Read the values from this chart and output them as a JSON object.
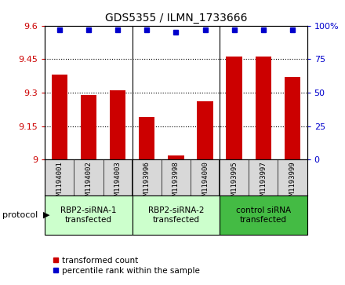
{
  "title": "GDS5355 / ILMN_1733666",
  "samples": [
    "GSM1194001",
    "GSM1194002",
    "GSM1194003",
    "GSM1193996",
    "GSM1193998",
    "GSM1194000",
    "GSM1193995",
    "GSM1193997",
    "GSM1193999"
  ],
  "bar_values": [
    9.38,
    9.29,
    9.31,
    9.19,
    9.02,
    9.26,
    9.46,
    9.46,
    9.37
  ],
  "blue_values": [
    97,
    97,
    97,
    97,
    95,
    97,
    97,
    97,
    97
  ],
  "ylim_left": [
    9.0,
    9.6
  ],
  "ylim_right": [
    0,
    100
  ],
  "yticks_left": [
    9.0,
    9.15,
    9.3,
    9.45,
    9.6
  ],
  "yticks_left_labels": [
    "9",
    "9.15",
    "9.3",
    "9.45",
    "9.6"
  ],
  "yticks_right": [
    0,
    25,
    50,
    75,
    100
  ],
  "yticks_right_labels": [
    "0",
    "25",
    "50",
    "75",
    "100%"
  ],
  "bar_color": "#cc0000",
  "blue_color": "#0000cc",
  "sample_box_color": "#d8d8d8",
  "protocol_labels": [
    "RBP2-siRNA-1\ntransfected",
    "RBP2-siRNA-2\ntransfected",
    "control siRNA\ntransfected"
  ],
  "protocol_groups": [
    3,
    3,
    3
  ],
  "protocol_bg_colors": [
    "#ccffcc",
    "#ccffcc",
    "#44bb44"
  ],
  "legend_red": "transformed count",
  "legend_blue": "percentile rank within the sample",
  "protocol_text": "protocol"
}
